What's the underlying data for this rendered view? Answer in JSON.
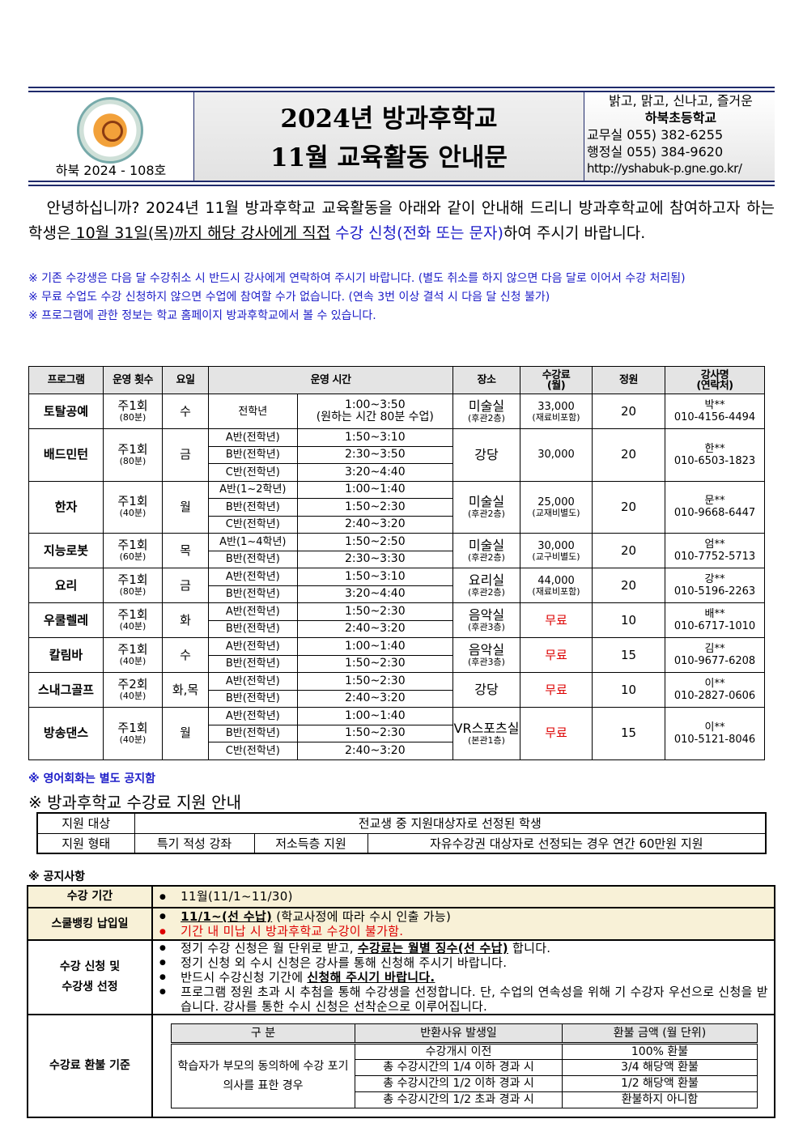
{
  "header": {
    "issue_no": "하북 2024 - 108호",
    "title_line1": "2024년 방과후학교",
    "title_line2": "11월 교육활동 안내문",
    "slogan": "밝고, 맑고, 신나고, 즐거운",
    "school": "하북초등학교",
    "phone1": "교무실 055) 382-6255",
    "phone2": "행정실 055) 384-9620",
    "url": "http://yshabuk-p.gne.go.kr/"
  },
  "intro": {
    "p1": "안녕하십니까? 2024년 11월 방과후학교 교육활동을 아래와 같이 안내해 드리니 방과후학교에 참여하고자 하는 학생은",
    "deadline": " 10월 31일(목)까지 해당 강사에게 직접",
    "apply": " 수강 신청(전화 또는 문자)",
    "p2": "하여 주시기 바랍니다.",
    "notes": [
      "※ 기존 수강생은 다음 달 수강취소 시 반드시 강사에게 연락하여 주시기 바랍니다. (별도 취소를 하지 않으면 다음 달로 이어서 수강 처리됨)",
      "※ 무료 수업도 수강 신청하지 않으면 수업에 참여할 수가 없습니다. (연속 3번 이상 결석 시 다음 달 신청 불가)",
      "※ 프로그램에 관한 정보는 학교 홈페이지 방과후학교에서 볼 수 있습니다."
    ]
  },
  "program_table": {
    "headers": [
      "프로그램",
      "운영 횟수",
      "요일",
      "운영 시간",
      "장소",
      "수강료\n(월)",
      "정원",
      "강사명\n(연락처)"
    ],
    "rows": [
      {
        "name": "토탈공예",
        "freq": "주1회",
        "dur": "(80분)",
        "day": "수",
        "sessions": [
          {
            "cls": "전학년",
            "time": "1:00~3:50",
            "time2": "(원하는 시간 80분 수업)"
          }
        ],
        "place": "미술실",
        "place2": "(후관2층)",
        "fee": "33,000",
        "fee2": "(재료비포함)",
        "cap": "20",
        "teacher": "박**",
        "phone": "010-4156-4494"
      },
      {
        "name": "배드민턴",
        "freq": "주1회",
        "dur": "(80분)",
        "day": "금",
        "sessions": [
          {
            "cls": "A반(전학년)",
            "time": "1:50~3:10"
          },
          {
            "cls": "B반(전학년)",
            "time": "2:30~3:50"
          },
          {
            "cls": "C반(전학년)",
            "time": "3:20~4:40"
          }
        ],
        "place": "강당",
        "place2": "",
        "fee": "30,000",
        "fee2": "",
        "cap": "20",
        "teacher": "한**",
        "phone": "010-6503-1823"
      },
      {
        "name": "한자",
        "freq": "주1회",
        "dur": "(40분)",
        "day": "월",
        "sessions": [
          {
            "cls": "A반(1~2학년)",
            "time": "1:00~1:40"
          },
          {
            "cls": "B반(전학년)",
            "time": "1:50~2:30"
          },
          {
            "cls": "C반(전학년)",
            "time": "2:40~3:20"
          }
        ],
        "place": "미술실",
        "place2": "(후관2층)",
        "fee": "25,000",
        "fee2": "(교재비별도)",
        "cap": "20",
        "teacher": "문**",
        "phone": "010-9668-6447"
      },
      {
        "name": "지능로봇",
        "freq": "주1회",
        "dur": "(60분)",
        "day": "목",
        "sessions": [
          {
            "cls": "A반(1~4학년)",
            "time": "1:50~2:50"
          },
          {
            "cls": "B반(전학년)",
            "time": "2:30~3:30"
          }
        ],
        "place": "미술실",
        "place2": "(후관2층)",
        "fee": "30,000",
        "fee2": "(교구비별도)",
        "cap": "20",
        "teacher": "엄**",
        "phone": "010-7752-5713"
      },
      {
        "name": "요리",
        "freq": "주1회",
        "dur": "(80분)",
        "day": "금",
        "sessions": [
          {
            "cls": "A반(전학년)",
            "time": "1:50~3:10"
          },
          {
            "cls": "B반(전학년)",
            "time": "3:20~4:40"
          }
        ],
        "place": "요리실",
        "place2": "(후관2층)",
        "fee": "44,000",
        "fee2": "(재료비포함)",
        "cap": "20",
        "teacher": "강**",
        "phone": "010-5196-2263"
      },
      {
        "name": "우쿨렐레",
        "freq": "주1회",
        "dur": "(40분)",
        "day": "화",
        "sessions": [
          {
            "cls": "A반(전학년)",
            "time": "1:50~2:30"
          },
          {
            "cls": "B반(전학년)",
            "time": "2:40~3:20"
          }
        ],
        "place": "음악실",
        "place2": "(후관3층)",
        "fee": "무료",
        "fee2": "",
        "free": true,
        "cap": "10",
        "teacher": "배**",
        "phone": "010-6717-1010"
      },
      {
        "name": "칼림바",
        "freq": "주1회",
        "dur": "(40분)",
        "day": "수",
        "sessions": [
          {
            "cls": "A반(전학년)",
            "time": "1:00~1:40"
          },
          {
            "cls": "B반(전학년)",
            "time": "1:50~2:30"
          }
        ],
        "place": "음악실",
        "place2": "(후관3층)",
        "fee": "무료",
        "fee2": "",
        "free": true,
        "cap": "15",
        "teacher": "김**",
        "phone": "010-9677-6208"
      },
      {
        "name": "스내그골프",
        "freq": "주2회",
        "dur": "(40분)",
        "day": "화,목",
        "sessions": [
          {
            "cls": "A반(전학년)",
            "time": "1:50~2:30"
          },
          {
            "cls": "B반(전학년)",
            "time": "2:40~3:20"
          }
        ],
        "place": "강당",
        "place2": "",
        "fee": "무료",
        "fee2": "",
        "free": true,
        "cap": "10",
        "teacher": "이**",
        "phone": "010-2827-0606"
      },
      {
        "name": "방송댄스",
        "freq": "주1회",
        "dur": "(40분)",
        "day": "월",
        "sessions": [
          {
            "cls": "A반(전학년)",
            "time": "1:00~1:40"
          },
          {
            "cls": "B반(전학년)",
            "time": "1:50~2:30"
          },
          {
            "cls": "C반(전학년)",
            "time": "2:40~3:20"
          }
        ],
        "place": "VR스포츠실",
        "place2": "(본관1층)",
        "fee": "무료",
        "fee2": "",
        "free": true,
        "cap": "15",
        "teacher": "이**",
        "phone": "010-5121-8046"
      }
    ]
  },
  "english_note": "※ 영어회화는 별도 공지함",
  "support": {
    "title": "※ 방과후학교 수강료 지원 안내",
    "target_label": "지원 대상",
    "target_value": "전교생 중 지원대상자로 선정된 학생",
    "type_label": "지원 형태",
    "types": [
      "특기 적성 강좌",
      "저소득층 지원",
      "자유수강권 대상자로 선정되는 경우 연간 60만원 지원"
    ]
  },
  "notice": {
    "title": "※ 공지사항",
    "period_label": "수강 기간",
    "period_value": "11월(11/1~11/30)",
    "bank_label": "스쿨뱅킹 납입일",
    "bank_bold": "11/1~(선 수납)",
    "bank_rest": " (학교사정에 따라 수시 인출 가능)",
    "bank_warning": "기간 내 미납 시 방과후학교 수강이 불가함.",
    "apply_label1": "수강 신청 및",
    "apply_label2": "수강생 선정",
    "apply_items": [
      [
        "정기 수강 신청은 월 단위로 받고, ",
        "수강료는 월별 징수(선 수납)",
        " 합니다."
      ],
      [
        "정기 신청 외 수시 신청은 강사를 통해 신청해 주시기 바랍니다.",
        "",
        ""
      ],
      [
        "반드시 수강신청 기간에 ",
        "신청해 주시기 바랍니다.",
        ""
      ],
      [
        "프로그램 정원 초과 시 추첨을 통해 수강생을 선정합니다. 단, 수업의 연속성을 위해 기 수강자 우선으로 신청을 받습니다. 강사를 통한 수시 신청은 선착순으로 이루어집니다.",
        "",
        ""
      ]
    ],
    "refund_label": "수강료 환불 기준",
    "refund": {
      "headers": [
        "구  분",
        "반환사유 발생일",
        "환불 금액 (월 단위)"
      ],
      "case": "학습자가 부모의 동의하에 수강 포기 의사를 표한 경우",
      "rows": [
        [
          "수강개시 이전",
          "100% 환불"
        ],
        [
          "총 수강시간의 1/4 이하 경과 시",
          "3/4 해당액 환불"
        ],
        [
          "총 수강시간의 1/2 이하 경과 시",
          "1/2 해당액 환불"
        ],
        [
          "총 수강시간의 1/2 초과 경과 시",
          "환불하지 아니함"
        ]
      ]
    }
  },
  "colors": {
    "navy": "#1f2a6b",
    "blue_text": "#1c1cc8",
    "red_text": "#dd0000",
    "beige": "#f8f1d7"
  }
}
